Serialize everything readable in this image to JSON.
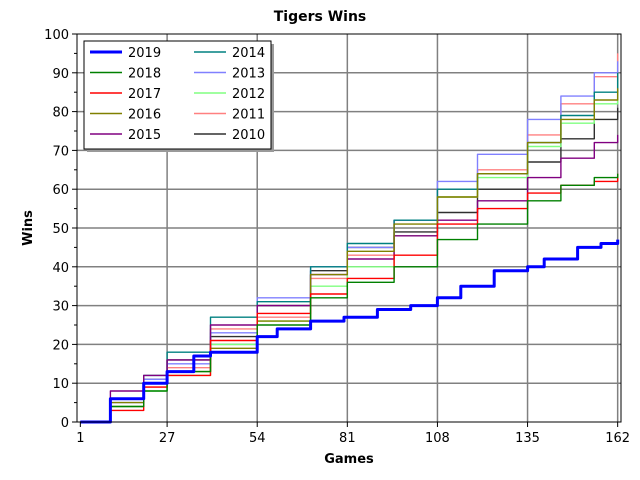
{
  "chart_data": {
    "type": "line",
    "title": "Tigers Wins",
    "xlabel": "Games",
    "ylabel": "Wins",
    "xlim": [
      0,
      163
    ],
    "ylim": [
      0,
      100
    ],
    "x_ticks": [
      1,
      27,
      54,
      81,
      108,
      135,
      162
    ],
    "y_ticks": [
      0,
      10,
      20,
      30,
      40,
      50,
      60,
      70,
      80,
      90,
      100
    ],
    "grid": true,
    "legend": {
      "placement": "top-left",
      "columns": 2
    },
    "series": [
      {
        "name": "2019",
        "color": "#0000ff",
        "bold": true,
        "points": [
          [
            1,
            0
          ],
          [
            10,
            6
          ],
          [
            20,
            10
          ],
          [
            27,
            13
          ],
          [
            35,
            17
          ],
          [
            40,
            18
          ],
          [
            50,
            18
          ],
          [
            54,
            22
          ],
          [
            60,
            24
          ],
          [
            70,
            26
          ],
          [
            80,
            27
          ],
          [
            90,
            29
          ],
          [
            100,
            30
          ],
          [
            108,
            32
          ],
          [
            115,
            35
          ],
          [
            125,
            39
          ],
          [
            135,
            40
          ],
          [
            140,
            42
          ],
          [
            150,
            45
          ],
          [
            157,
            46
          ],
          [
            162,
            47
          ]
        ]
      },
      {
        "name": "2018",
        "color": "#008000",
        "points": [
          [
            1,
            0
          ],
          [
            10,
            4
          ],
          [
            20,
            8
          ],
          [
            27,
            13
          ],
          [
            40,
            18
          ],
          [
            54,
            25
          ],
          [
            70,
            32
          ],
          [
            81,
            36
          ],
          [
            95,
            40
          ],
          [
            108,
            47
          ],
          [
            120,
            51
          ],
          [
            135,
            57
          ],
          [
            145,
            61
          ],
          [
            155,
            63
          ],
          [
            162,
            64
          ]
        ]
      },
      {
        "name": "2017",
        "color": "#ff0000",
        "points": [
          [
            1,
            0
          ],
          [
            10,
            3
          ],
          [
            20,
            9
          ],
          [
            27,
            12
          ],
          [
            40,
            21
          ],
          [
            54,
            28
          ],
          [
            70,
            33
          ],
          [
            81,
            37
          ],
          [
            95,
            43
          ],
          [
            108,
            51
          ],
          [
            120,
            55
          ],
          [
            135,
            59
          ],
          [
            145,
            61
          ],
          [
            155,
            62
          ],
          [
            162,
            64
          ]
        ]
      },
      {
        "name": "2016",
        "color": "#808000",
        "points": [
          [
            1,
            0
          ],
          [
            10,
            5
          ],
          [
            20,
            10
          ],
          [
            27,
            13
          ],
          [
            40,
            19
          ],
          [
            54,
            26
          ],
          [
            70,
            38
          ],
          [
            81,
            44
          ],
          [
            95,
            51
          ],
          [
            108,
            58
          ],
          [
            120,
            64
          ],
          [
            135,
            72
          ],
          [
            145,
            78
          ],
          [
            155,
            83
          ],
          [
            162,
            86
          ]
        ]
      },
      {
        "name": "2015",
        "color": "#800080",
        "points": [
          [
            1,
            0
          ],
          [
            10,
            8
          ],
          [
            20,
            12
          ],
          [
            27,
            16
          ],
          [
            40,
            25
          ],
          [
            54,
            30
          ],
          [
            70,
            38
          ],
          [
            81,
            42
          ],
          [
            95,
            48
          ],
          [
            108,
            52
          ],
          [
            120,
            57
          ],
          [
            135,
            63
          ],
          [
            145,
            68
          ],
          [
            155,
            72
          ],
          [
            162,
            74
          ]
        ]
      },
      {
        "name": "2014",
        "color": "#008080",
        "points": [
          [
            1,
            0
          ],
          [
            10,
            6
          ],
          [
            20,
            12
          ],
          [
            27,
            18
          ],
          [
            40,
            27
          ],
          [
            54,
            31
          ],
          [
            70,
            40
          ],
          [
            81,
            46
          ],
          [
            95,
            52
          ],
          [
            108,
            60
          ],
          [
            120,
            64
          ],
          [
            135,
            72
          ],
          [
            145,
            79
          ],
          [
            155,
            85
          ],
          [
            162,
            90
          ]
        ]
      },
      {
        "name": "2013",
        "color": "#8080ff",
        "points": [
          [
            1,
            0
          ],
          [
            10,
            5
          ],
          [
            20,
            11
          ],
          [
            27,
            15
          ],
          [
            40,
            23
          ],
          [
            54,
            32
          ],
          [
            70,
            40
          ],
          [
            81,
            45
          ],
          [
            95,
            52
          ],
          [
            108,
            62
          ],
          [
            120,
            69
          ],
          [
            135,
            78
          ],
          [
            145,
            84
          ],
          [
            155,
            90
          ],
          [
            162,
            93
          ]
        ]
      },
      {
        "name": "2012",
        "color": "#80ff80",
        "points": [
          [
            1,
            0
          ],
          [
            10,
            4
          ],
          [
            20,
            8
          ],
          [
            27,
            12
          ],
          [
            40,
            20
          ],
          [
            54,
            26
          ],
          [
            70,
            35
          ],
          [
            81,
            40
          ],
          [
            95,
            48
          ],
          [
            108,
            58
          ],
          [
            120,
            63
          ],
          [
            135,
            71
          ],
          [
            145,
            77
          ],
          [
            155,
            82
          ],
          [
            162,
            88
          ]
        ]
      },
      {
        "name": "2011",
        "color": "#ff8080",
        "points": [
          [
            1,
            0
          ],
          [
            10,
            4
          ],
          [
            20,
            9
          ],
          [
            27,
            14
          ],
          [
            40,
            24
          ],
          [
            54,
            27
          ],
          [
            70,
            37
          ],
          [
            81,
            43
          ],
          [
            95,
            52
          ],
          [
            108,
            58
          ],
          [
            120,
            65
          ],
          [
            135,
            74
          ],
          [
            145,
            82
          ],
          [
            155,
            89
          ],
          [
            162,
            95
          ]
        ]
      },
      {
        "name": "2010",
        "color": "#303030",
        "points": [
          [
            1,
            0
          ],
          [
            10,
            6
          ],
          [
            20,
            11
          ],
          [
            27,
            16
          ],
          [
            40,
            22
          ],
          [
            54,
            30
          ],
          [
            70,
            39
          ],
          [
            81,
            45
          ],
          [
            95,
            49
          ],
          [
            108,
            54
          ],
          [
            120,
            60
          ],
          [
            135,
            67
          ],
          [
            145,
            73
          ],
          [
            155,
            78
          ],
          [
            162,
            81
          ]
        ]
      }
    ]
  }
}
